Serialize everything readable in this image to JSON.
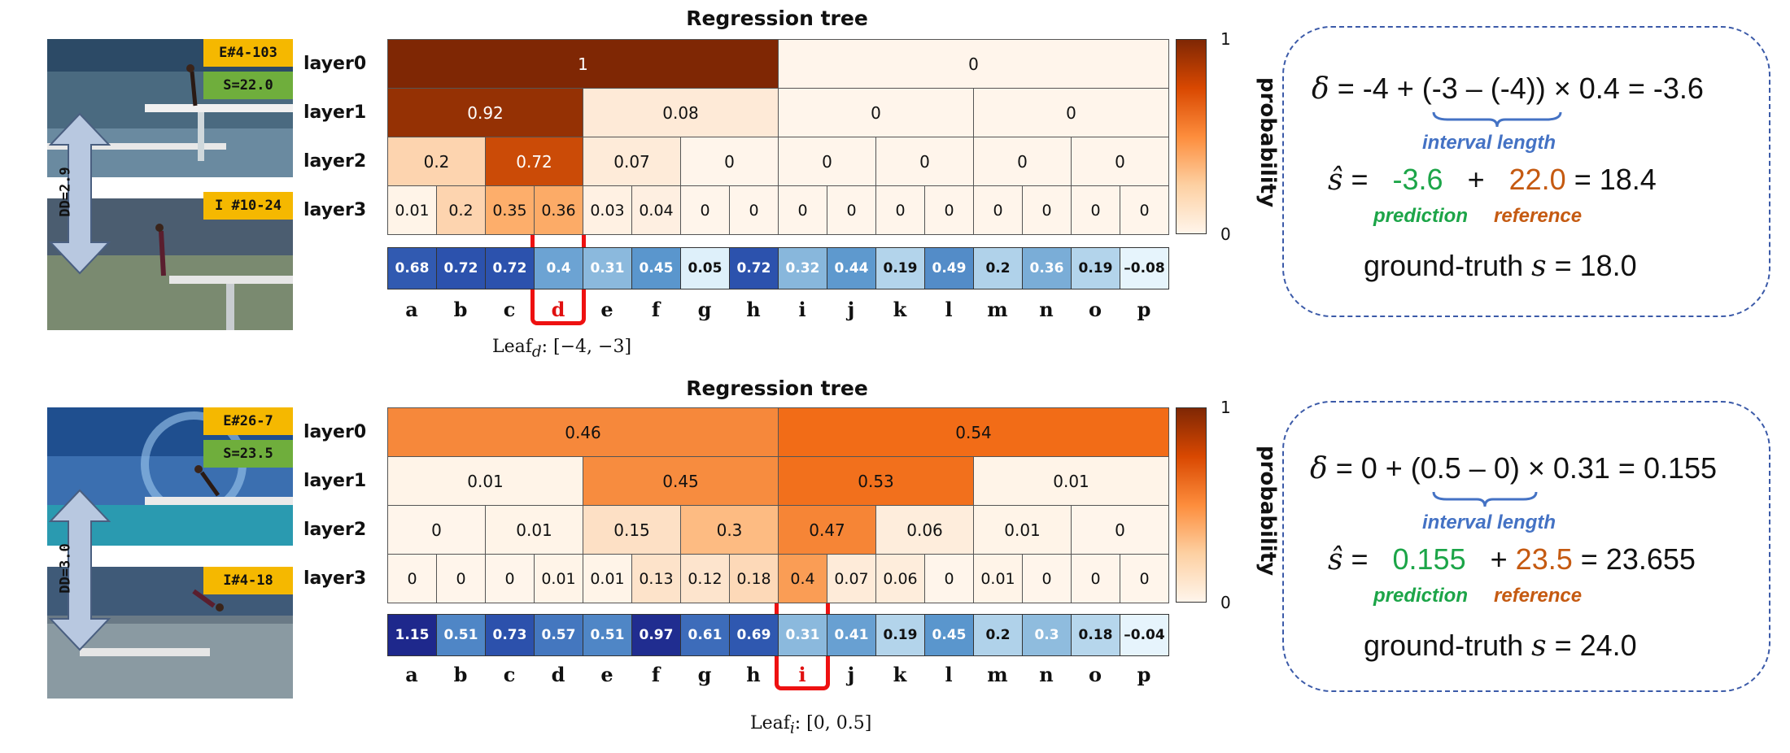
{
  "colors": {
    "highlight": "#ee1111",
    "green": "#1ca548",
    "orange": "#c55a11",
    "blue": "#4472c4",
    "yellow_tag": "#f5b800",
    "green_tag": "#6fae3c",
    "arrow": "#b8c8e0"
  },
  "layer_labels": [
    "layer0",
    "layer1",
    "layer2",
    "layer3"
  ],
  "leaves": [
    "a",
    "b",
    "c",
    "d",
    "e",
    "f",
    "g",
    "h",
    "i",
    "j",
    "k",
    "l",
    "m",
    "n",
    "o",
    "p"
  ],
  "colorbar": {
    "max_label": "1",
    "min_label": "0",
    "label": "probability"
  },
  "panels": [
    {
      "tags": {
        "exemplar": "E#4-103",
        "score": "S=22.0",
        "input": "I #10-24",
        "dd": "DD=2.9"
      },
      "tree_title": "Regression tree",
      "layers": [
        {
          "values": [
            1,
            0
          ],
          "labels": [
            "1",
            "0"
          ]
        },
        {
          "values": [
            0.92,
            0.08,
            0,
            0
          ],
          "labels": [
            "0.92",
            "0.08",
            "0",
            "0"
          ]
        },
        {
          "values": [
            0.2,
            0.72,
            0.07,
            0,
            0,
            0,
            0,
            0
          ],
          "labels": [
            "0.2",
            "0.72",
            "0.07",
            "0",
            "0",
            "0",
            "0",
            "0"
          ]
        },
        {
          "values": [
            0.01,
            0.2,
            0.35,
            0.36,
            0.03,
            0.04,
            0,
            0,
            0,
            0,
            0,
            0,
            0,
            0,
            0,
            0
          ],
          "labels": [
            "0.01",
            "0.2",
            "0.35",
            "0.36",
            "0.03",
            "0.04",
            "0",
            "0",
            "0",
            "0",
            "0",
            "0",
            "0",
            "0",
            "0",
            "0"
          ]
        }
      ],
      "predictions": {
        "values": [
          0.68,
          0.72,
          0.72,
          0.4,
          0.31,
          0.45,
          0.05,
          0.72,
          0.32,
          0.44,
          0.19,
          0.49,
          0.2,
          0.36,
          0.19,
          -0.08
        ],
        "labels": [
          "0.68",
          "0.72",
          "0.72",
          "0.4",
          "0.31",
          "0.45",
          "0.05",
          "0.72",
          "0.32",
          "0.44",
          "0.19",
          "0.49",
          "0.2",
          "0.36",
          "0.19",
          "–0.08"
        ]
      },
      "highlight_leaf": 3,
      "leaf_caption": {
        "prefix": "Leaf",
        "sub": "d",
        "range": ": [−4, −3]"
      },
      "calc": {
        "delta_prefix": "δ",
        "delta_eq": " = -4 + (-3 – (-4)) × 0.4 = -3.6",
        "interval_label": "interval length",
        "s_hat": "ŝ",
        "pred_value": "-3.6",
        "plus": "+",
        "ref_value": "22.0",
        "result": "= 18.4",
        "pred_label": "prediction",
        "ref_label": "reference",
        "gt_prefix": "ground-truth ",
        "gt_symbol": "s",
        "gt_value": " = 18.0"
      }
    },
    {
      "tags": {
        "exemplar": "E#26-7",
        "score": "S=23.5",
        "input": "I#4-18",
        "dd": "DD=3.0"
      },
      "tree_title": "Regression tree",
      "layers": [
        {
          "values": [
            0.46,
            0.54
          ],
          "labels": [
            "0.46",
            "0.54"
          ]
        },
        {
          "values": [
            0.01,
            0.45,
            0.53,
            0.01
          ],
          "labels": [
            "0.01",
            "0.45",
            "0.53",
            "0.01"
          ]
        },
        {
          "values": [
            0,
            0.01,
            0.15,
            0.3,
            0.47,
            0.06,
            0.01,
            0
          ],
          "labels": [
            "0",
            "0.01",
            "0.15",
            "0.3",
            "0.47",
            "0.06",
            "0.01",
            "0"
          ]
        },
        {
          "values": [
            0,
            0,
            0,
            0.01,
            0.01,
            0.13,
            0.12,
            0.18,
            0.4,
            0.07,
            0.06,
            0,
            0.01,
            0,
            0,
            0
          ],
          "labels": [
            "0",
            "0",
            "0",
            "0.01",
            "0.01",
            "0.13",
            "0.12",
            "0.18",
            "0.4",
            "0.07",
            "0.06",
            "0",
            "0.01",
            "0",
            "0",
            "0"
          ]
        }
      ],
      "predictions": {
        "values": [
          1.15,
          0.51,
          0.73,
          0.57,
          0.51,
          0.97,
          0.61,
          0.69,
          0.31,
          0.41,
          0.19,
          0.45,
          0.2,
          0.3,
          0.18,
          -0.04
        ],
        "labels": [
          "1.15",
          "0.51",
          "0.73",
          "0.57",
          "0.51",
          "0.97",
          "0.61",
          "0.69",
          "0.31",
          "0.41",
          "0.19",
          "0.45",
          "0.2",
          "0.3",
          "0.18",
          "–0.04"
        ]
      },
      "highlight_leaf": 8,
      "leaf_caption": {
        "prefix": "Leaf",
        "sub": "i",
        "range": ": [0, 0.5]"
      },
      "calc": {
        "delta_prefix": "δ",
        "delta_eq": " = 0 + (0.5 – 0) × 0.31 = 0.155",
        "interval_label": "interval length",
        "s_hat": "ŝ",
        "pred_value": "0.155",
        "plus": "+",
        "ref_value": "23.5",
        "result": "= 23.655",
        "pred_label": "prediction",
        "ref_label": "reference",
        "gt_prefix": "ground-truth ",
        "gt_symbol": "s",
        "gt_value": " = 24.0"
      }
    }
  ]
}
